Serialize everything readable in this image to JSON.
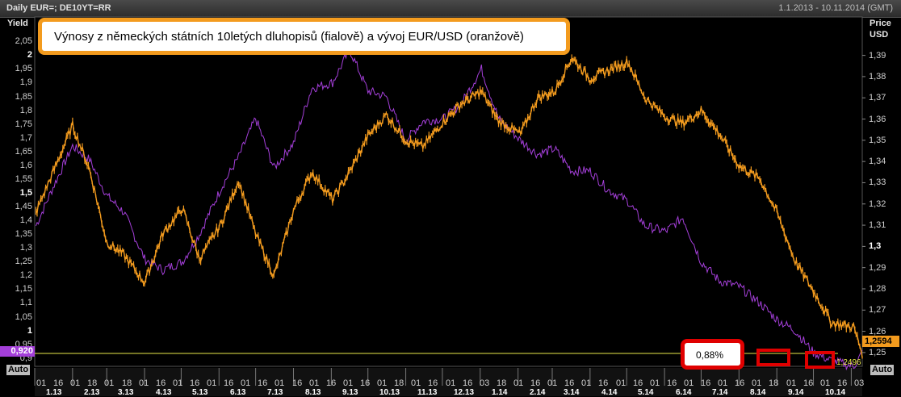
{
  "header": {
    "instrument": "Daily EUR=; DE10YT=RR",
    "date_range": "1.1.2013 - 10.11.2014 (GMT)"
  },
  "left_axis": {
    "title": "Yield",
    "auto": "Auto"
  },
  "right_axis": {
    "title_line1": "Price",
    "title_line2": "USD",
    "auto": "Auto"
  },
  "annotation": {
    "text": "Výnosy z německých státních 10letých dluhopisů (fialově) a vývoj EUR/USD (oranžově)"
  },
  "callout": {
    "text": "0,88%"
  },
  "current_values": {
    "yield": "0,920",
    "price": "1,2594",
    "line_label": "1,2496"
  },
  "colors": {
    "yield": "#a43fd9",
    "price": "#f39b1e",
    "highlight": "#e00000",
    "reference_line": "#e8e84a"
  },
  "chart_data": {
    "type": "line",
    "title": "Výnosy z německých státních 10letých dluhopisů (fialově) a vývoj EUR/USD (oranžově)",
    "x_range": [
      "2013-01-01",
      "2014-11-10"
    ],
    "x_ticks_days": [
      "01",
      "16",
      "01",
      "18",
      "01",
      "18",
      "01",
      "16",
      "01",
      "16",
      "01",
      "16",
      "01",
      "16",
      "01",
      "16",
      "01",
      "16",
      "01",
      "16",
      "01",
      "18",
      "01",
      "16",
      "01",
      "16",
      "03",
      "18",
      "01",
      "16",
      "01",
      "16",
      "01",
      "16",
      "01",
      "16",
      "01",
      "16",
      "01",
      "16",
      "01",
      "16",
      "01",
      "18",
      "01",
      "16",
      "01",
      "16",
      "03"
    ],
    "x_ticks_months": [
      "1.13",
      "2.13",
      "3.13",
      "4.13",
      "5.13",
      "6.13",
      "7.13",
      "8.13",
      "9.13",
      "10.13",
      "11.13",
      "12.13",
      "1.14",
      "2.14",
      "3.14",
      "4.14",
      "5.14",
      "6.14",
      "7.14",
      "8.14",
      "9.14",
      "10.14"
    ],
    "left_axis": {
      "label": "Yield",
      "ylim": [
        0.87,
        2.08
      ],
      "ticks": [
        "2,05",
        "2",
        "1,95",
        "1,9",
        "1,85",
        "1,8",
        "1,75",
        "1,7",
        "1,65",
        "1,6",
        "1,55",
        "1,5",
        "1,45",
        "1,4",
        "1,35",
        "1,3",
        "1,25",
        "1,2",
        "1,15",
        "1,1",
        "1,05",
        "1",
        "0,95",
        "0,9"
      ],
      "bold_ticks": [
        "2",
        "1,5",
        "1"
      ]
    },
    "right_axis": {
      "label": "Price USD",
      "ylim": [
        1.2435,
        1.4005
      ],
      "ticks": [
        "1,39",
        "1,38",
        "1,37",
        "1,36",
        "1,35",
        "1,34",
        "1,33",
        "1,32",
        "1,31",
        "1,3",
        "1,29",
        "1,28",
        "1,27",
        "1,26",
        "1,25"
      ],
      "bold_ticks": [
        "1,3"
      ]
    },
    "series": [
      {
        "name": "DE10YT=RR",
        "axis": "left",
        "color": "#a43fd9",
        "x": [
          "2013-01-02",
          "2013-01-16",
          "2013-02-01",
          "2013-02-15",
          "2013-03-01",
          "2013-03-15",
          "2013-04-01",
          "2013-04-16",
          "2013-05-02",
          "2013-05-16",
          "2013-06-03",
          "2013-06-17",
          "2013-07-01",
          "2013-07-16",
          "2013-08-01",
          "2013-08-16",
          "2013-09-02",
          "2013-09-16",
          "2013-10-01",
          "2013-10-16",
          "2013-11-01",
          "2013-11-15",
          "2013-12-02",
          "2013-12-16",
          "2014-01-02",
          "2014-01-16",
          "2014-02-03",
          "2014-02-17",
          "2014-03-03",
          "2014-03-17",
          "2014-04-01",
          "2014-04-16",
          "2014-05-02",
          "2014-05-16",
          "2014-06-02",
          "2014-06-16",
          "2014-07-01",
          "2014-07-16",
          "2014-08-01",
          "2014-08-18",
          "2014-09-01",
          "2014-09-16",
          "2014-10-01",
          "2014-10-16",
          "2014-11-03",
          "2014-11-10"
        ],
        "y": [
          1.38,
          1.52,
          1.67,
          1.62,
          1.49,
          1.43,
          1.26,
          1.22,
          1.25,
          1.35,
          1.52,
          1.63,
          1.77,
          1.59,
          1.68,
          1.88,
          1.9,
          2.02,
          1.87,
          1.85,
          1.69,
          1.76,
          1.77,
          1.82,
          1.95,
          1.77,
          1.69,
          1.64,
          1.66,
          1.58,
          1.58,
          1.51,
          1.47,
          1.38,
          1.36,
          1.41,
          1.25,
          1.18,
          1.16,
          1.1,
          1.04,
          1.0,
          0.92,
          0.89,
          0.87,
          0.92
        ]
      },
      {
        "name": "EUR=",
        "axis": "right",
        "color": "#f39b1e",
        "x": [
          "2013-01-02",
          "2013-01-16",
          "2013-02-01",
          "2013-02-15",
          "2013-03-01",
          "2013-03-15",
          "2013-04-01",
          "2013-04-16",
          "2013-05-02",
          "2013-05-16",
          "2013-06-03",
          "2013-06-17",
          "2013-07-01",
          "2013-07-16",
          "2013-08-01",
          "2013-08-16",
          "2013-09-02",
          "2013-09-16",
          "2013-10-01",
          "2013-10-16",
          "2013-11-01",
          "2013-11-15",
          "2013-12-02",
          "2013-12-16",
          "2014-01-02",
          "2014-01-16",
          "2014-02-03",
          "2014-02-17",
          "2014-03-03",
          "2014-03-17",
          "2014-04-01",
          "2014-04-16",
          "2014-05-02",
          "2014-05-16",
          "2014-06-02",
          "2014-06-16",
          "2014-07-01",
          "2014-07-16",
          "2014-08-01",
          "2014-08-18",
          "2014-09-01",
          "2014-09-16",
          "2014-10-01",
          "2014-10-16",
          "2014-11-03",
          "2014-11-10"
        ],
        "y": [
          1.316,
          1.335,
          1.357,
          1.336,
          1.302,
          1.296,
          1.283,
          1.306,
          1.318,
          1.294,
          1.311,
          1.331,
          1.306,
          1.286,
          1.317,
          1.335,
          1.322,
          1.335,
          1.352,
          1.362,
          1.35,
          1.347,
          1.359,
          1.367,
          1.373,
          1.359,
          1.353,
          1.37,
          1.373,
          1.389,
          1.379,
          1.383,
          1.387,
          1.37,
          1.361,
          1.358,
          1.364,
          1.353,
          1.338,
          1.332,
          1.316,
          1.293,
          1.279,
          1.264,
          1.262,
          1.2496
        ]
      }
    ],
    "annotations": [
      "0,88%"
    ],
    "grid": false,
    "legend": "none"
  }
}
